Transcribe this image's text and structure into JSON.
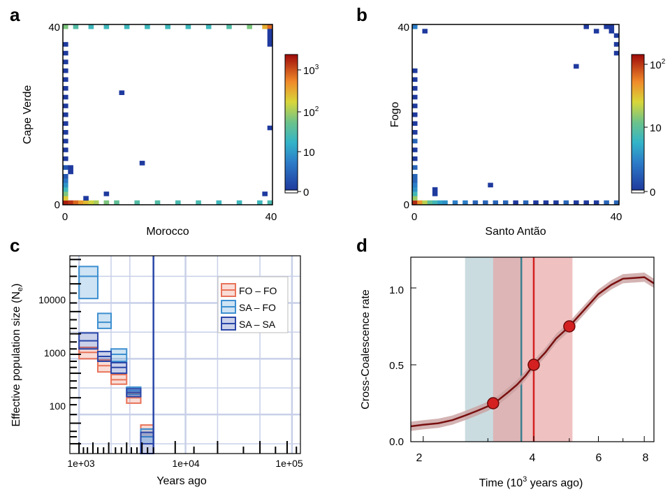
{
  "colors": {
    "heat_low": "#2040a0",
    "heat_high": "#a00000",
    "fo_fo": "#e8735a",
    "sa_fo": "#3d8fd0",
    "sa_sa": "#2a46a8",
    "cc_line": "#7a1010",
    "cc_band": "#c9a0a0",
    "pt": "#d42020",
    "teal_band": "#b8d0d6",
    "teal_line": "#3a7f8f",
    "red_band": "#e8a0a0",
    "grid": "#c8d0e8"
  },
  "panels": {
    "a": {
      "letter": "a",
      "xlabel": "Morocco",
      "ylabel": "Cape Verde",
      "x_ticks": [
        "0",
        "40"
      ],
      "y_ticks": [
        "0",
        "40"
      ],
      "colorbar_ticks": [
        "10",
        "10",
        "10",
        "0"
      ],
      "colorbar_sup": [
        "3",
        "2",
        "",
        ""
      ]
    },
    "b": {
      "letter": "b",
      "xlabel": "Santo Antão",
      "ylabel": "Fogo",
      "x_ticks": [
        "0",
        "40"
      ],
      "y_ticks": [
        "0",
        "40"
      ],
      "colorbar_ticks": [
        "10",
        "10",
        "0"
      ],
      "colorbar_sup": [
        "2",
        "",
        ""
      ]
    },
    "c": {
      "letter": "c",
      "xlabel": "Years ago",
      "ylabel": "Effective population size (N",
      "ylabel_sub": "e",
      "ylabel_end": ")",
      "x_ticks": [
        "1e+03",
        "1e+04",
        "1e+05"
      ],
      "y_ticks": [
        "10000",
        "1000",
        "100"
      ]
    },
    "d": {
      "letter": "d",
      "xlabel_pre": "Time (10",
      "xlabel_sup": "3",
      "xlabel_post": "  years ago)",
      "ylabel": "Cross-Coalescence rate",
      "x_ticks": [
        "2",
        "4",
        "6",
        "8"
      ],
      "y_ticks": [
        "1.0",
        "0.5",
        "0.0"
      ]
    }
  },
  "chart_data": [
    {
      "panel": "a",
      "type": "heatmap",
      "xlabel": "Morocco",
      "ylabel": "Cape Verde",
      "xlim": [
        0,
        40
      ],
      "ylim": [
        0,
        40
      ],
      "colorbar": {
        "scale": "log",
        "ticks": [
          0,
          10,
          100,
          1000
        ]
      },
      "cells": [
        [
          0,
          40,
          60
        ],
        [
          2,
          40,
          30
        ],
        [
          5,
          40,
          20
        ],
        [
          8,
          40,
          20
        ],
        [
          12,
          40,
          20
        ],
        [
          16,
          40,
          20
        ],
        [
          20,
          40,
          20
        ],
        [
          24,
          40,
          20
        ],
        [
          28,
          40,
          20
        ],
        [
          32,
          40,
          30
        ],
        [
          36,
          40,
          60
        ],
        [
          39,
          40,
          300
        ],
        [
          40,
          40,
          800
        ],
        [
          0,
          0,
          2000
        ],
        [
          1,
          0,
          1500
        ],
        [
          2,
          0,
          800
        ],
        [
          3,
          0,
          400
        ],
        [
          4,
          0,
          250
        ],
        [
          5,
          0,
          150
        ],
        [
          6,
          0,
          100
        ],
        [
          8,
          0,
          60
        ],
        [
          10,
          0,
          40
        ],
        [
          14,
          0,
          30
        ],
        [
          18,
          0,
          30
        ],
        [
          22,
          0,
          25
        ],
        [
          26,
          0,
          25
        ],
        [
          30,
          0,
          20
        ],
        [
          34,
          0,
          20
        ],
        [
          38,
          0,
          20
        ],
        [
          40,
          0,
          25
        ],
        [
          0,
          1,
          200
        ],
        [
          0,
          2,
          60
        ],
        [
          0,
          3,
          20
        ],
        [
          0,
          4,
          8
        ],
        [
          0,
          5,
          4
        ],
        [
          0,
          6,
          2
        ],
        [
          0,
          8,
          2
        ],
        [
          0,
          10,
          1
        ],
        [
          0,
          12,
          1
        ],
        [
          0,
          14,
          1
        ],
        [
          0,
          16,
          1
        ],
        [
          0,
          18,
          1
        ],
        [
          0,
          20,
          1
        ],
        [
          0,
          22,
          1
        ],
        [
          0,
          24,
          1
        ],
        [
          0,
          26,
          1
        ],
        [
          0,
          28,
          1
        ],
        [
          0,
          30,
          1
        ],
        [
          0,
          32,
          1
        ],
        [
          0,
          34,
          1
        ],
        [
          0,
          36,
          1
        ],
        [
          1,
          7,
          1
        ],
        [
          1,
          8,
          1
        ],
        [
          4,
          1,
          1
        ],
        [
          8,
          2,
          1
        ],
        [
          11,
          25,
          1
        ],
        [
          15,
          9,
          1
        ],
        [
          39,
          2,
          1
        ],
        [
          40,
          17,
          1
        ],
        [
          40,
          36,
          1
        ],
        [
          40,
          37,
          1
        ],
        [
          40,
          38,
          1
        ],
        [
          40,
          39,
          1
        ]
      ]
    },
    {
      "panel": "b",
      "type": "heatmap",
      "xlabel": "Santo Antão",
      "ylabel": "Fogo",
      "xlim": [
        0,
        40
      ],
      "ylim": [
        0,
        40
      ],
      "colorbar": {
        "scale": "log",
        "ticks": [
          0,
          10,
          100
        ]
      },
      "cells": [
        [
          0,
          0,
          150
        ],
        [
          1,
          0,
          60
        ],
        [
          2,
          0,
          25
        ],
        [
          3,
          0,
          12
        ],
        [
          4,
          0,
          8
        ],
        [
          5,
          0,
          5
        ],
        [
          6,
          0,
          4
        ],
        [
          8,
          0,
          3
        ],
        [
          10,
          0,
          3
        ],
        [
          12,
          0,
          2
        ],
        [
          14,
          0,
          2
        ],
        [
          16,
          0,
          2
        ],
        [
          18,
          0,
          2
        ],
        [
          20,
          0,
          1
        ],
        [
          22,
          0,
          2
        ],
        [
          24,
          0,
          1
        ],
        [
          26,
          0,
          1
        ],
        [
          28,
          0,
          1
        ],
        [
          30,
          0,
          2
        ],
        [
          32,
          0,
          1
        ],
        [
          34,
          0,
          1
        ],
        [
          36,
          0,
          1
        ],
        [
          38,
          0,
          2
        ],
        [
          40,
          0,
          2
        ],
        [
          0,
          1,
          20
        ],
        [
          0,
          2,
          8
        ],
        [
          0,
          3,
          4
        ],
        [
          0,
          4,
          3
        ],
        [
          0,
          5,
          2
        ],
        [
          0,
          6,
          2
        ],
        [
          0,
          8,
          2
        ],
        [
          0,
          10,
          1
        ],
        [
          0,
          12,
          1
        ],
        [
          0,
          14,
          2
        ],
        [
          0,
          16,
          1
        ],
        [
          0,
          18,
          1
        ],
        [
          0,
          20,
          1
        ],
        [
          0,
          22,
          1
        ],
        [
          0,
          24,
          1
        ],
        [
          0,
          26,
          1
        ],
        [
          0,
          28,
          1
        ],
        [
          0,
          30,
          1
        ],
        [
          0,
          40,
          3
        ],
        [
          2,
          39,
          1
        ],
        [
          4,
          3,
          1
        ],
        [
          4,
          2,
          1
        ],
        [
          15,
          4,
          1
        ],
        [
          32,
          31,
          1
        ],
        [
          34,
          40,
          1
        ],
        [
          36,
          39,
          1
        ],
        [
          38,
          40,
          1
        ],
        [
          39,
          40,
          1
        ],
        [
          40,
          38,
          1
        ],
        [
          40,
          36,
          1
        ],
        [
          40,
          34,
          1
        ],
        [
          39,
          39,
          1
        ]
      ]
    },
    {
      "panel": "c",
      "type": "line",
      "xlabel": "Years ago",
      "ylabel": "Effective population size (Ne)",
      "x_scale": "log",
      "y_scale": "log",
      "xlim": [
        820,
        120000
      ],
      "ylim": [
        20,
        70000
      ],
      "legend": {
        "position": "top-right",
        "entries": [
          "FO – FO",
          "SA – FO",
          "SA – SA"
        ]
      },
      "vline_x": 5000,
      "series": [
        {
          "name": "FO – FO",
          "boxes": [
            {
              "x0": 1000,
              "x1": 1500,
              "lo": 1000,
              "mid": 1300,
              "hi": 1600
            },
            {
              "x0": 1500,
              "x1": 2000,
              "lo": 580,
              "mid": 750,
              "hi": 950
            },
            {
              "x0": 2000,
              "x1": 2800,
              "lo": 350,
              "mid": 420,
              "hi": 520
            },
            {
              "x0": 2800,
              "x1": 3800,
              "lo": 160,
              "mid": 200,
              "hi": 240
            },
            {
              "x0": 3800,
              "x1": 5000,
              "lo": 40,
              "mid": 55,
              "hi": 65
            }
          ]
        },
        {
          "name": "SA – FO",
          "boxes": [
            {
              "x0": 1000,
              "x1": 1500,
              "lo": 12000,
              "mid": 30000,
              "hi": 45000
            },
            {
              "x0": 1500,
              "x1": 2000,
              "lo": 3500,
              "mid": 4500,
              "hi": 6500
            },
            {
              "x0": 2000,
              "x1": 2800,
              "lo": 900,
              "mid": 1200,
              "hi": 1500
            },
            {
              "x0": 2800,
              "x1": 3800,
              "lo": 230,
              "mid": 270,
              "hi": 310
            },
            {
              "x0": 3800,
              "x1": 5000,
              "lo": 30,
              "mid": 40,
              "hi": 55
            }
          ]
        },
        {
          "name": "SA – SA",
          "boxes": [
            {
              "x0": 1000,
              "x1": 1500,
              "lo": 1500,
              "mid": 2100,
              "hi": 2900
            },
            {
              "x0": 1500,
              "x1": 2000,
              "lo": 900,
              "mid": 1100,
              "hi": 1350
            },
            {
              "x0": 2000,
              "x1": 2800,
              "lo": 550,
              "mid": 700,
              "hi": 850
            },
            {
              "x0": 2800,
              "x1": 3800,
              "lo": 210,
              "mid": 250,
              "hi": 290
            },
            {
              "x0": 3800,
              "x1": 5000,
              "lo": 20,
              "mid": 30,
              "hi": 48
            }
          ]
        }
      ]
    },
    {
      "panel": "d",
      "type": "line",
      "xlabel": "Time (10^3 years ago)",
      "ylabel": "Cross-Coalescence rate",
      "x_scale": "log",
      "xlim": [
        1.85,
        8.5
      ],
      "ylim": [
        0,
        1.2
      ],
      "x": [
        1.85,
        2.0,
        2.2,
        2.4,
        2.6,
        2.8,
        3.0,
        3.2,
        3.4,
        3.6,
        3.8,
        4.0,
        4.3,
        4.6,
        5.0,
        5.5,
        6.0,
        6.5,
        7.0,
        7.5,
        8.0,
        8.5
      ],
      "y": [
        0.1,
        0.11,
        0.12,
        0.14,
        0.17,
        0.2,
        0.23,
        0.27,
        0.32,
        0.37,
        0.43,
        0.5,
        0.58,
        0.67,
        0.75,
        0.86,
        0.96,
        1.02,
        1.06,
        1.065,
        1.07,
        1.03
      ],
      "band": 0.03,
      "points": [
        [
          3.1,
          0.25
        ],
        [
          4.0,
          0.5
        ],
        [
          5.0,
          0.75
        ]
      ],
      "teal_band": [
        2.6,
        3.7
      ],
      "teal_vline": 3.7,
      "red_band": [
        3.1,
        5.1
      ],
      "red_vline": 4.0
    }
  ]
}
